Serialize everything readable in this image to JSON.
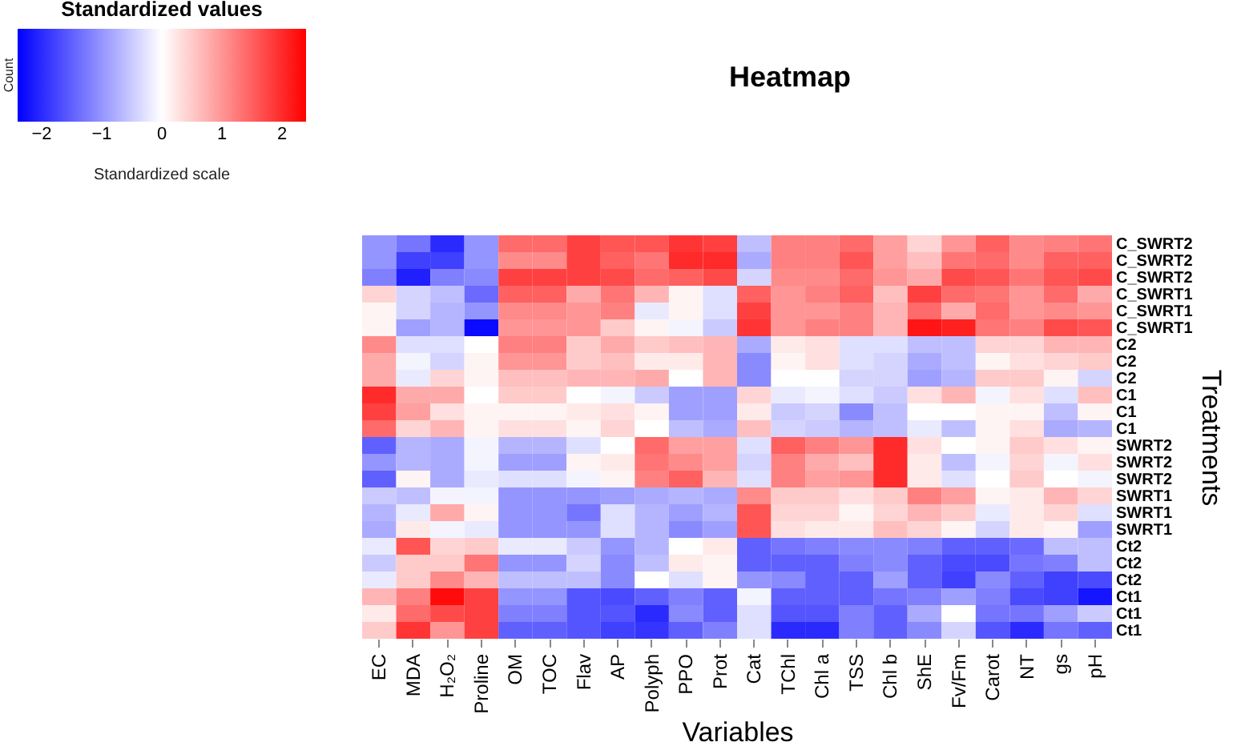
{
  "chart_data": {
    "type": "heatmap",
    "title": "Heatmap",
    "xlabel": "Variables",
    "ylabel": "Treatments",
    "clabel": "Standardized values",
    "annotations": [
      "Standardized scale",
      "Count"
    ],
    "categories": [
      "EC",
      "MDA",
      "H₂O₂",
      "Proline",
      "OM",
      "TOC",
      "Flav",
      "AP",
      "Polyph",
      "PPO",
      "Prot",
      "Cat",
      "TChl",
      "Chl a",
      "TSS",
      "Chl b",
      "ShE",
      "Fv/Fm",
      "Carot",
      "NT",
      "gs",
      "pH"
    ],
    "y_categories": [
      "C_SWRT2",
      "C_SWRT2",
      "C_SWRT2",
      "C_SWRT1",
      "C_SWRT1",
      "C_SWRT1",
      "C2",
      "C2",
      "C2",
      "C1",
      "C1",
      "C1",
      "SWRT2",
      "SWRT2",
      "SWRT2",
      "SWRT1",
      "SWRT1",
      "SWRT1",
      "Ct2",
      "Ct2",
      "Ct2",
      "Ct1",
      "Ct1",
      "Ct1"
    ],
    "cells": [
      [
        -1.0,
        -1.3,
        -2.0,
        -1.0,
        1.4,
        1.4,
        1.8,
        1.6,
        1.6,
        1.9,
        1.8,
        -0.6,
        1.2,
        1.2,
        1.4,
        0.9,
        0.4,
        1.0,
        1.5,
        1.1,
        1.2,
        1.3
      ],
      [
        -1.0,
        -1.8,
        -1.8,
        -1.0,
        1.1,
        1.1,
        1.8,
        1.5,
        1.3,
        2.0,
        2.0,
        -0.8,
        1.2,
        1.2,
        1.6,
        0.9,
        0.6,
        1.3,
        1.4,
        1.1,
        1.5,
        1.5
      ],
      [
        -1.2,
        -2.1,
        -1.2,
        -1.1,
        1.8,
        1.8,
        1.8,
        1.7,
        1.4,
        1.5,
        1.7,
        -0.4,
        1.1,
        1.1,
        1.4,
        1.0,
        0.8,
        1.7,
        1.6,
        1.3,
        1.6,
        1.7
      ],
      [
        0.4,
        -0.4,
        -0.6,
        -1.4,
        1.5,
        1.5,
        0.8,
        1.3,
        0.7,
        0.1,
        -0.3,
        1.5,
        1.0,
        1.2,
        1.5,
        0.6,
        1.8,
        1.4,
        1.3,
        1.0,
        1.4,
        0.8
      ],
      [
        0.1,
        -0.4,
        -0.7,
        -1.0,
        1.1,
        1.1,
        1.0,
        1.2,
        -0.2,
        0.1,
        -0.3,
        1.8,
        1.0,
        1.0,
        1.2,
        0.7,
        1.4,
        0.8,
        1.4,
        1.0,
        1.1,
        1.0
      ],
      [
        0.1,
        -0.9,
        -0.7,
        -2.3,
        1.0,
        1.0,
        1.0,
        0.5,
        0.1,
        -0.1,
        -0.5,
        1.9,
        1.0,
        1.2,
        1.2,
        0.7,
        2.2,
        2.1,
        1.3,
        1.2,
        1.7,
        1.6
      ],
      [
        1.1,
        -0.3,
        -0.3,
        0.0,
        1.2,
        1.2,
        0.5,
        0.8,
        0.5,
        0.6,
        0.7,
        -0.8,
        0.2,
        0.3,
        -0.3,
        -0.3,
        -0.6,
        -0.6,
        0.4,
        0.4,
        0.7,
        0.7
      ],
      [
        0.8,
        -0.1,
        -0.4,
        0.1,
        1.0,
        1.0,
        0.5,
        0.6,
        0.2,
        0.2,
        0.7,
        -1.1,
        0.1,
        0.3,
        -0.3,
        -0.4,
        -0.8,
        -0.6,
        0.1,
        0.3,
        0.4,
        0.5
      ],
      [
        0.8,
        -0.2,
        0.4,
        0.1,
        0.6,
        0.6,
        0.7,
        0.7,
        0.8,
        0.0,
        0.7,
        -1.1,
        0.0,
        0.0,
        -0.4,
        -0.4,
        -0.9,
        -0.7,
        0.5,
        0.5,
        0.1,
        -0.4
      ],
      [
        2.0,
        0.8,
        0.8,
        0.0,
        0.5,
        0.5,
        0.0,
        -0.1,
        -0.5,
        -0.9,
        -0.9,
        0.4,
        -0.2,
        -0.1,
        -0.3,
        -0.5,
        0.3,
        0.7,
        -0.1,
        0.3,
        -0.3,
        0.6
      ],
      [
        1.8,
        0.9,
        0.3,
        0.1,
        0.1,
        0.1,
        0.2,
        0.3,
        0.1,
        -0.9,
        -0.9,
        0.2,
        -0.5,
        -0.4,
        -1.1,
        -0.6,
        0.0,
        0.0,
        0.1,
        0.1,
        -0.6,
        0.1
      ],
      [
        1.4,
        0.4,
        0.7,
        0.1,
        0.3,
        0.3,
        0.1,
        0.4,
        0.0,
        -0.6,
        -0.8,
        0.6,
        -0.4,
        -0.5,
        -0.7,
        -0.6,
        -0.2,
        -0.6,
        0.1,
        0.3,
        -0.8,
        -0.7
      ],
      [
        -1.5,
        -0.7,
        -0.8,
        -0.1,
        -0.7,
        -0.7,
        -0.3,
        0.0,
        1.4,
        0.9,
        0.9,
        -0.3,
        1.5,
        1.2,
        1.0,
        2.0,
        0.3,
        0.0,
        0.1,
        0.5,
        0.3,
        0.1
      ],
      [
        -1.0,
        -0.7,
        -0.8,
        -0.1,
        -0.9,
        -0.9,
        0.1,
        0.2,
        1.3,
        1.1,
        0.9,
        -0.4,
        1.2,
        0.8,
        0.6,
        2.0,
        0.2,
        -0.6,
        -0.1,
        0.4,
        -0.1,
        0.3
      ],
      [
        -1.5,
        0.1,
        -0.8,
        -0.2,
        -0.3,
        -0.3,
        -0.1,
        0.1,
        1.2,
        1.5,
        0.7,
        -0.3,
        1.2,
        0.9,
        1.0,
        2.0,
        0.2,
        -0.3,
        0.0,
        0.5,
        0.0,
        -0.1
      ],
      [
        -0.5,
        -0.6,
        -0.1,
        -0.1,
        -1.0,
        -1.0,
        -1.0,
        -0.9,
        -0.8,
        -0.7,
        -0.8,
        1.1,
        0.5,
        0.5,
        0.3,
        0.5,
        1.2,
        0.9,
        0.1,
        0.2,
        0.7,
        0.4
      ],
      [
        -0.7,
        -0.2,
        0.8,
        0.1,
        -1.0,
        -1.0,
        -1.3,
        -0.3,
        -0.7,
        -0.9,
        -0.7,
        1.6,
        0.4,
        0.4,
        0.1,
        0.4,
        0.7,
        0.5,
        -0.2,
        0.2,
        0.4,
        -0.3
      ],
      [
        -0.8,
        0.2,
        -0.1,
        -0.2,
        -1.0,
        -1.0,
        -1.0,
        -0.3,
        -0.7,
        -1.1,
        -0.9,
        1.6,
        0.3,
        0.2,
        0.2,
        0.6,
        0.4,
        0.1,
        -0.4,
        0.2,
        0.1,
        -0.9
      ],
      [
        -0.2,
        1.6,
        0.4,
        0.5,
        -0.2,
        -0.2,
        -0.5,
        -1.0,
        -0.7,
        0.0,
        0.2,
        -1.5,
        -1.3,
        -1.2,
        -1.1,
        -1.1,
        -1.2,
        -1.5,
        -1.5,
        -1.4,
        -0.6,
        -0.6
      ],
      [
        -0.5,
        0.5,
        0.5,
        1.3,
        -1.0,
        -1.0,
        -0.4,
        -1.1,
        -0.6,
        0.2,
        0.1,
        -1.5,
        -1.5,
        -1.5,
        -1.2,
        -1.1,
        -1.5,
        -1.7,
        -1.7,
        -1.3,
        -1.2,
        -0.6
      ],
      [
        -0.2,
        0.5,
        1.1,
        0.7,
        -0.6,
        -0.6,
        -0.6,
        -1.1,
        0.0,
        -0.3,
        0.1,
        -1.0,
        -1.1,
        -1.5,
        -1.5,
        -0.9,
        -1.5,
        -1.8,
        -1.1,
        -1.5,
        -1.8,
        -1.7
      ],
      [
        0.7,
        1.2,
        2.3,
        1.8,
        -1.0,
        -1.0,
        -1.6,
        -1.7,
        -1.5,
        -1.2,
        -1.5,
        -0.1,
        -1.5,
        -1.5,
        -1.5,
        -1.3,
        -1.2,
        -0.9,
        -1.2,
        -1.7,
        -1.8,
        -2.2
      ],
      [
        0.2,
        1.4,
        1.7,
        1.8,
        -1.2,
        -1.2,
        -1.6,
        -1.6,
        -2.0,
        -1.1,
        -1.5,
        -0.3,
        -1.6,
        -1.6,
        -1.2,
        -1.5,
        -0.8,
        0.0,
        -1.3,
        -1.3,
        -0.9,
        -0.5
      ],
      [
        0.5,
        1.9,
        1.0,
        1.8,
        -1.5,
        -1.5,
        -1.6,
        -1.8,
        -1.9,
        -1.5,
        -1.2,
        -0.3,
        -2.0,
        -2.0,
        -1.2,
        -1.5,
        -1.1,
        -0.4,
        -1.6,
        -2.0,
        -1.3,
        -1.5
      ]
    ],
    "clim": [
      -2.4,
      2.4
    ],
    "cticks": [
      -2,
      -1,
      0,
      1,
      2
    ],
    "colors": [
      "#0000ff",
      "#ffffff",
      "#ff0000"
    ]
  }
}
